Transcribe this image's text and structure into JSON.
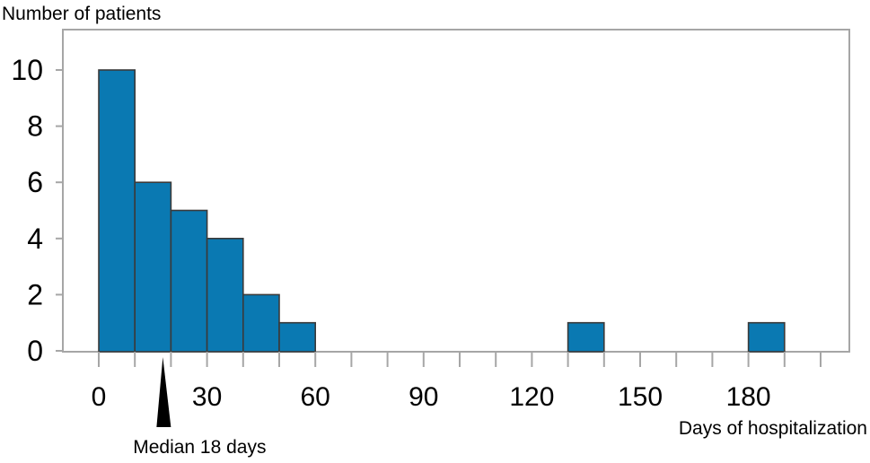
{
  "chart_data": {
    "type": "bar",
    "subtype": "histogram",
    "xlabel": "Days of hospitalization",
    "ylabel": "Number of patients",
    "bin_width": 10,
    "x_range": [
      0,
      200
    ],
    "ylim": [
      0,
      11
    ],
    "x_ticks": [
      0,
      30,
      60,
      90,
      120,
      150,
      180
    ],
    "y_ticks": [
      0,
      2,
      4,
      6,
      8,
      10
    ],
    "bins": [
      {
        "start": 0,
        "end": 10,
        "value": 10
      },
      {
        "start": 10,
        "end": 20,
        "value": 6
      },
      {
        "start": 20,
        "end": 30,
        "value": 5
      },
      {
        "start": 30,
        "end": 40,
        "value": 4
      },
      {
        "start": 40,
        "end": 50,
        "value": 2
      },
      {
        "start": 50,
        "end": 60,
        "value": 1
      },
      {
        "start": 130,
        "end": 140,
        "value": 1
      },
      {
        "start": 180,
        "end": 190,
        "value": 1
      }
    ],
    "annotation": {
      "text": "Median 18 days",
      "x": 18
    },
    "bar_color": "#0a79b2",
    "grid": false
  }
}
